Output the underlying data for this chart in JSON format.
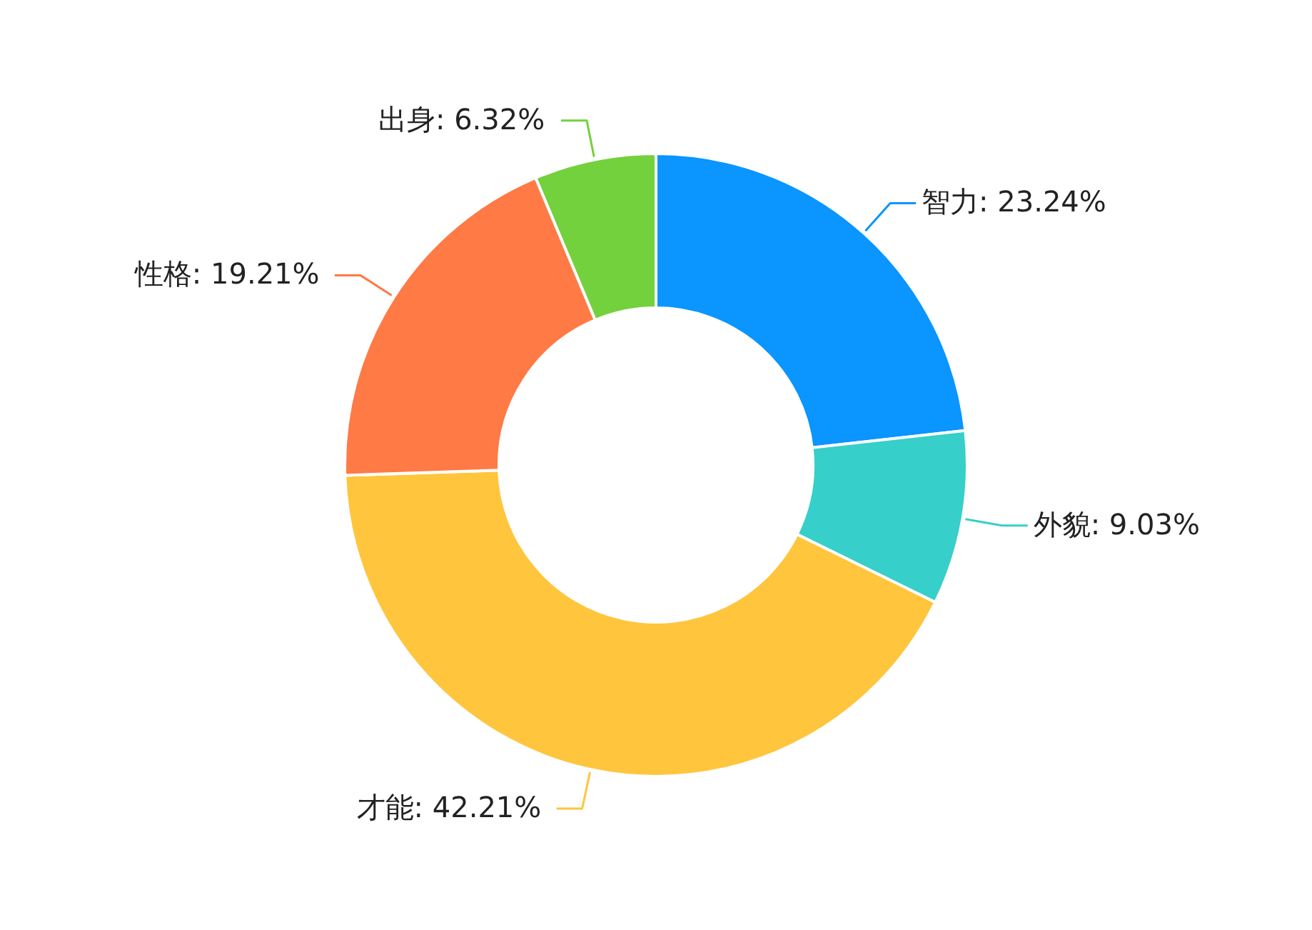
{
  "chart_data": {
    "type": "donut",
    "categories": [
      "智力",
      "外貌",
      "才能",
      "性格",
      "出身"
    ],
    "values": [
      23.24,
      9.03,
      42.21,
      19.21,
      6.32
    ],
    "colors": [
      "#0a95ff",
      "#36cfc9",
      "#ffc53d",
      "#ff7a45",
      "#73d13d"
    ],
    "value_labels": [
      ": 23.24%",
      ": 9.03%",
      ": 42.21%",
      ": 19.21%",
      ": 6.32%"
    ]
  }
}
